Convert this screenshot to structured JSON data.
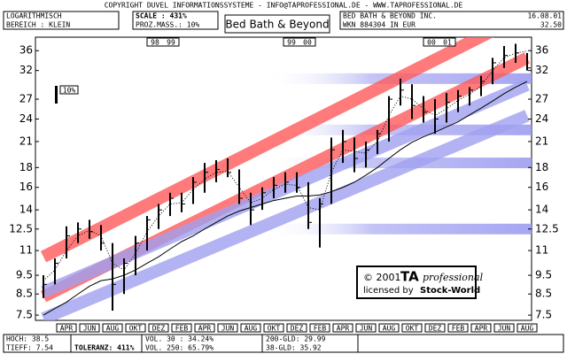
{
  "header": {
    "copyright": "COPYRIGHT DUVEL INFORMATIONSSYSTEME - INFO@TAPROFESSIONAL.DE - WWW.TAPROFESSIONAL.DE",
    "scale_type": "LOGARITHMISCH",
    "range": "BEREICH : KLEIN",
    "scale": "SCALE : 431%",
    "percent": "PROZ.MASS.: 10%",
    "name": "Bed Bath & Beyond",
    "company": "BED BATH & BEYOND INC.",
    "date": "16.08.01",
    "wkn": "WKN 884304 IN EUR",
    "last": "32.50",
    "pct_box": "10%"
  },
  "footer": {
    "high": "HOCH: 38.5",
    "low": "TIEFF: 7.54",
    "tolerance": "TOLERANZ: 411%",
    "vol30": "VOL. 30 : 34.24%",
    "vol250": "VOL. 250: 65.79%",
    "gld200": "200-GLD: 29.99",
    "gld38": "38-GLD: 35.92"
  },
  "logo": {
    "copy": "© 2001",
    "ta": "TA",
    "pro": "professional",
    "lic": "licensed by",
    "sw": "Stock-World"
  },
  "chart_data": {
    "type": "ohlc",
    "log": true,
    "ylim": [
      7.27,
      39
    ],
    "yticks": [
      7.5,
      8.5,
      9.5,
      11,
      12.5,
      14,
      16,
      18,
      21,
      24,
      27,
      32,
      36
    ],
    "year_markers": [
      [
        "98",
        "99"
      ],
      [
        "99",
        "00"
      ],
      [
        "00",
        "01"
      ]
    ],
    "categories": [
      null,
      null,
      "APR",
      null,
      "JUN",
      null,
      "AUG",
      null,
      "OKT",
      null,
      "DEZ",
      null,
      "FEB",
      null,
      "APR",
      null,
      "JUN",
      null,
      "AUG",
      null,
      "OKT",
      null,
      "DEZ",
      null,
      "FEB",
      null,
      "APR",
      null,
      "JUN",
      null,
      "AUG",
      null,
      "OKT",
      null,
      "DEZ",
      null,
      "FEB",
      null,
      "APR",
      null,
      "JUN",
      null,
      "AUG"
    ],
    "high": [
      9.5,
      10.5,
      12.7,
      13.0,
      13.2,
      12.8,
      11.5,
      10.5,
      12.0,
      13.5,
      14.5,
      15.5,
      15.5,
      17.0,
      18.5,
      18.8,
      19.0,
      17.8,
      15.5,
      16.0,
      17.0,
      17.5,
      17.5,
      16.5,
      15.0,
      21.5,
      22.5,
      21.5,
      21.0,
      22.5,
      27.5,
      30.5,
      29.5,
      27.5,
      27.0,
      28.0,
      28.5,
      29.0,
      31.0,
      34.5,
      37.0,
      37.5,
      35.5
    ],
    "low": [
      8.3,
      9.0,
      10.5,
      11.5,
      11.8,
      11.0,
      7.7,
      8.5,
      9.5,
      11.0,
      12.5,
      13.5,
      13.8,
      14.5,
      15.5,
      16.5,
      17.0,
      14.5,
      12.8,
      14.0,
      15.0,
      15.5,
      15.5,
      12.5,
      11.2,
      14.5,
      18.5,
      17.5,
      18.0,
      19.5,
      21.0,
      26.0,
      24.0,
      23.5,
      22.0,
      23.5,
      25.0,
      26.0,
      27.5,
      29.5,
      32.5,
      33.5,
      32.0
    ],
    "close": [
      9.0,
      10.2,
      12.0,
      12.5,
      12.3,
      11.5,
      9.0,
      10.2,
      11.5,
      13.2,
      14.0,
      15.0,
      14.5,
      16.5,
      17.5,
      17.8,
      17.5,
      15.0,
      14.0,
      15.5,
      16.2,
      16.5,
      16.0,
      13.0,
      14.5,
      20.0,
      21.0,
      19.0,
      20.0,
      22.0,
      27.0,
      28.5,
      26.0,
      25.0,
      24.0,
      26.5,
      27.5,
      28.5,
      30.0,
      33.5,
      35.0,
      35.5,
      32.5
    ],
    "bar_color": "#000000",
    "lines": [
      {
        "color": "#000000",
        "style": "dotted",
        "values": [
          9.2,
          9.8,
          11.0,
          12.0,
          12.4,
          12.0,
          10.2,
          9.8,
          10.8,
          12.3,
          13.5,
          14.5,
          14.6,
          15.8,
          16.8,
          17.5,
          17.6,
          16.0,
          14.6,
          15.0,
          15.8,
          16.3,
          16.2,
          14.2,
          14.0,
          17.5,
          20.0,
          19.8,
          19.6,
          21.0,
          24.5,
          27.5,
          27.0,
          25.5,
          24.5,
          25.5,
          26.8,
          27.8,
          29.2,
          32.0,
          34.5,
          35.5,
          35.92
        ]
      },
      {
        "color": "#000000",
        "style": "solid",
        "values": [
          7.5,
          7.8,
          8.1,
          8.5,
          8.9,
          9.2,
          9.3,
          9.5,
          9.8,
          10.2,
          10.6,
          11.1,
          11.6,
          12.0,
          12.5,
          13.0,
          13.5,
          13.9,
          14.2,
          14.5,
          14.8,
          15.0,
          15.2,
          15.2,
          15.3,
          15.6,
          16.0,
          16.5,
          17.2,
          18.0,
          19.0,
          20.0,
          20.9,
          21.6,
          22.2,
          22.9,
          23.6,
          24.6,
          25.6,
          26.7,
          27.9,
          29.0,
          29.99
        ]
      }
    ],
    "channels": [
      {
        "color": "#ff5a5a",
        "values": [
          10.6,
          44.9
        ]
      },
      {
        "color": "#ff5a5a",
        "values": [
          8.37,
          34.5
        ]
      },
      {
        "color": "#a0a0f0",
        "values": [
          8.6,
          29.4
        ]
      },
      {
        "color": "#a0a0f0",
        "values": [
          7.35,
          24.5
        ]
      }
    ],
    "levels": {
      "color": "#9c9cf0",
      "values": [
        30.5,
        22.5,
        18.5,
        12.5
      ]
    }
  }
}
